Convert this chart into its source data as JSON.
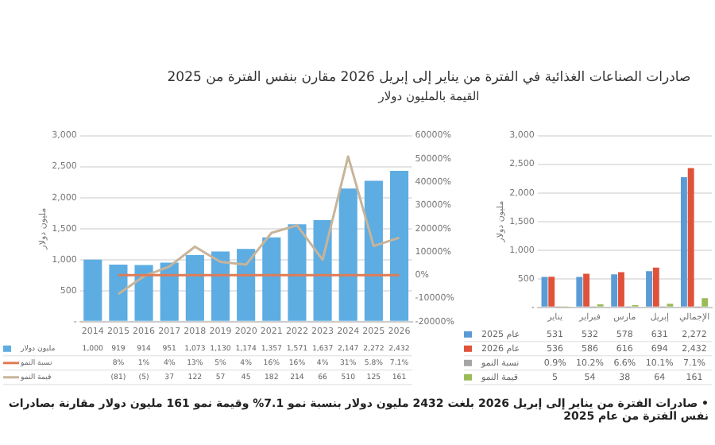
{
  "chart_data": [
    {
      "type": "bar",
      "title": "صادرات الصناعات الغذائية في الفترة من يناير إلى إبريل 2026 مقارن بنفس الفترة من 2025",
      "subtitle": "القيمة بالمليون دولار",
      "ylabel": "مليون دولار",
      "annotations": [
        "• صادرات الفترة من يناير إلى إبريل 2026 بلغت 2432 مليون دولار بنسبة نمو 7.1% وقيمة نمو 161 مليون دولار مقارنة بصادرات نفس الفترة من عام 2025"
      ],
      "categories": [
        "2014",
        "2015",
        "2016",
        "2017",
        "2018",
        "2019",
        "2020",
        "2021",
        "2022",
        "2023",
        "2024",
        "2025",
        "2026"
      ],
      "series": [
        {
          "name": "مليون دولار",
          "color": "#5dade2",
          "values": [
            1000,
            919,
            914,
            951,
            1073,
            1130,
            1174,
            1357,
            1571,
            1637,
            2147,
            2272,
            2432
          ],
          "value_labels": [
            "1,000",
            "919",
            "914",
            "951",
            "1,073",
            "1,130",
            "1,174",
            "1,357",
            "1,571",
            "1,637",
            "2,147",
            "2,272",
            "2,432"
          ]
        },
        {
          "name": "نسبة النمو",
          "type": "line",
          "axis": "y2",
          "color": "#e07b54",
          "values": [
            null,
            0.08,
            0.01,
            0.04,
            0.13,
            0.05,
            0.04,
            0.16,
            0.16,
            0.04,
            0.31,
            0.058,
            0.071
          ],
          "value_labels": [
            null,
            "8%",
            "1%",
            "4%",
            "13%",
            "5%",
            "4%",
            "16%",
            "16%",
            "4%",
            "31%",
            "5.8%",
            "7.1%"
          ]
        },
        {
          "name": "قيمة النمو",
          "type": "line",
          "axis": "y2",
          "color": "#c8b49a",
          "values": [
            null,
            -81,
            -5,
            37,
            122,
            57,
            45,
            182,
            214,
            66,
            510,
            125,
            161
          ],
          "value_labels": [
            null,
            "(81)",
            "(5)",
            "37",
            "122",
            "57",
            "45",
            "182",
            "214",
            "66",
            "510",
            "125",
            "161"
          ]
        }
      ],
      "ylim": [
        0,
        3000
      ],
      "yticks": [
        {
          "value": 0,
          "label": "-"
        },
        500,
        {
          "value": 1000,
          "label": "1,000"
        },
        {
          "value": 1500,
          "label": "1,500"
        },
        {
          "value": 2000,
          "label": "2,000"
        },
        {
          "value": 2500,
          "label": "2,500"
        },
        {
          "value": 3000,
          "label": "3,000"
        }
      ],
      "y2lim": [
        -200,
        600
      ],
      "y2ticks": [
        {
          "value": -200,
          "label": "-20000%"
        },
        {
          "value": -100,
          "label": "-10000%"
        },
        {
          "value": 0,
          "label": "0%"
        },
        {
          "value": 100,
          "label": "10000%"
        },
        {
          "value": 200,
          "label": "20000%"
        },
        {
          "value": 300,
          "label": "30000%"
        },
        {
          "value": 400,
          "label": "40000%"
        },
        {
          "value": 500,
          "label": "50000%"
        },
        {
          "value": 600,
          "label": "60000%"
        }
      ],
      "grid": "y",
      "legend": "bottom"
    },
    {
      "type": "bar",
      "ylabel": "مليون دولار",
      "categories": [
        "يناير",
        "فبراير",
        "مارس",
        "إبريل",
        "الإجمالي"
      ],
      "series": [
        {
          "name": "عام 2025",
          "color": "#5b9bd5",
          "values": [
            531,
            532,
            578,
            631,
            2272
          ],
          "value_labels": [
            "531",
            "532",
            "578",
            "631",
            "2,272"
          ]
        },
        {
          "name": "عام 2026",
          "color": "#e0523a",
          "values": [
            536,
            586,
            616,
            694,
            2432
          ],
          "value_labels": [
            "536",
            "586",
            "616",
            "694",
            "2,432"
          ]
        },
        {
          "name": "نسبة النمو",
          "color": "#a5a5a5",
          "values": [
            0.009,
            0.102,
            0.066,
            0.101,
            0.071
          ],
          "value_labels": [
            "0.9%",
            "10.2%",
            "6.6%",
            "10.1%",
            "7.1%"
          ]
        },
        {
          "name": "قيمة النمو",
          "color": "#9bbb59",
          "values": [
            5,
            54,
            38,
            64,
            161
          ],
          "value_labels": [
            "5",
            "54",
            "38",
            "64",
            "161"
          ]
        }
      ],
      "ylim": [
        0,
        3000
      ],
      "yticks": [
        {
          "value": 0,
          "label": "-"
        },
        500,
        {
          "value": 1000,
          "label": "1,000"
        },
        {
          "value": 1500,
          "label": "1,500"
        },
        {
          "value": 2000,
          "label": "2,000"
        },
        {
          "value": 2500,
          "label": "2,500"
        },
        {
          "value": 3000,
          "label": "3,000"
        }
      ],
      "grid": "y",
      "legend": "bottom"
    }
  ]
}
